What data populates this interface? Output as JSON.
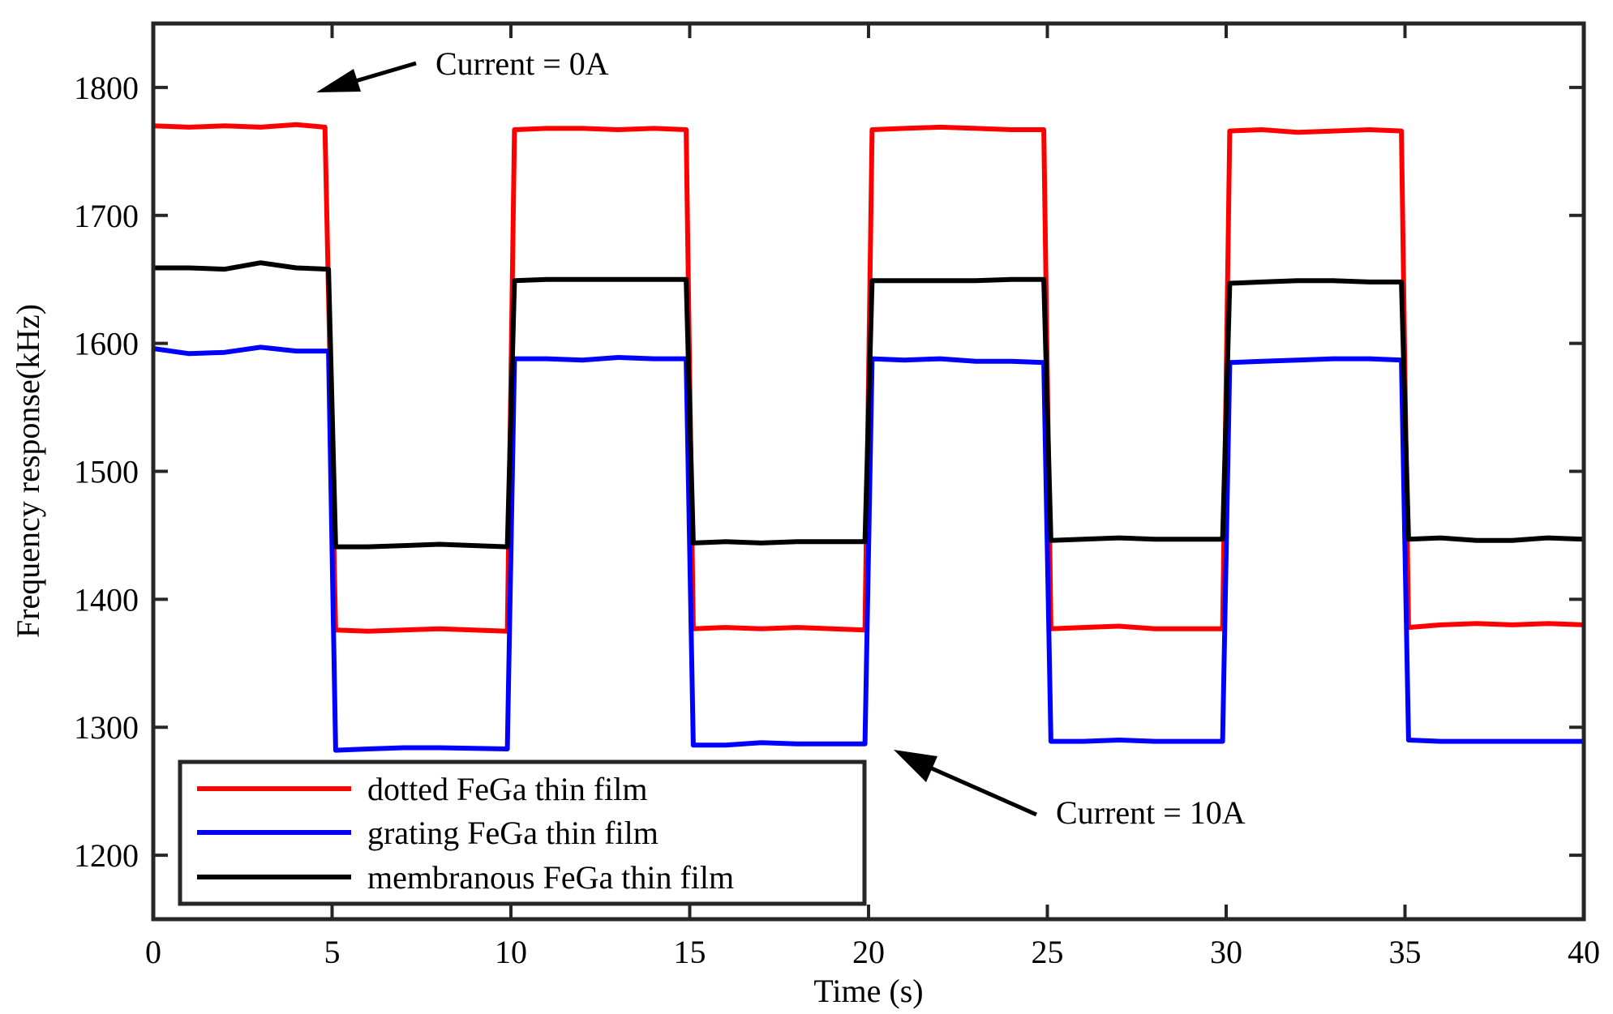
{
  "chart_data": {
    "type": "line",
    "title": "",
    "xlabel": "Time (s)",
    "ylabel": "Frequency response(kHz)",
    "xlim": [
      0,
      40
    ],
    "ylim": [
      1150,
      1850
    ],
    "xticks": [
      0,
      5,
      10,
      15,
      20,
      25,
      30,
      35,
      40
    ],
    "yticks": [
      1200,
      1300,
      1400,
      1500,
      1600,
      1700,
      1800
    ],
    "grid": false,
    "legend_position": "bottom-left",
    "series": [
      {
        "name": "dotted FeGa thin film",
        "color": "#ff0000",
        "x": [
          0,
          1,
          2,
          3,
          4,
          4.8,
          5.1,
          6,
          7,
          8,
          9.9,
          10.1,
          11,
          12,
          13,
          14,
          14.9,
          15.1,
          16,
          17,
          18,
          19.9,
          20.1,
          21,
          22,
          23,
          24,
          24.9,
          25.1,
          26,
          27,
          28,
          29.9,
          30.1,
          31,
          32,
          33,
          34,
          34.9,
          35.1,
          36,
          37,
          38,
          39,
          40
        ],
        "y": [
          1770,
          1769,
          1770,
          1769,
          1771,
          1769,
          1376,
          1375,
          1376,
          1377,
          1375,
          1767,
          1768,
          1768,
          1767,
          1768,
          1767,
          1377,
          1378,
          1377,
          1378,
          1376,
          1767,
          1768,
          1769,
          1768,
          1767,
          1767,
          1377,
          1378,
          1379,
          1377,
          1377,
          1766,
          1767,
          1765,
          1766,
          1767,
          1766,
          1378,
          1380,
          1381,
          1380,
          1381,
          1380
        ]
      },
      {
        "name": "grating FeGa thin film",
        "color": "#0000ff",
        "x": [
          0,
          1,
          2,
          3,
          4,
          4.9,
          5.1,
          6,
          7,
          8,
          9.9,
          10.1,
          11,
          12,
          13,
          14,
          14.9,
          15.1,
          16,
          17,
          18,
          19.9,
          20.1,
          21,
          22,
          23,
          24,
          24.9,
          25.1,
          26,
          27,
          28,
          29.9,
          30.1,
          31,
          32,
          33,
          34,
          34.9,
          35.1,
          36,
          37,
          38,
          39,
          40
        ],
        "y": [
          1596,
          1592,
          1593,
          1597,
          1594,
          1594,
          1282,
          1283,
          1284,
          1284,
          1283,
          1588,
          1588,
          1587,
          1589,
          1588,
          1588,
          1286,
          1286,
          1288,
          1287,
          1287,
          1588,
          1587,
          1588,
          1586,
          1586,
          1585,
          1289,
          1289,
          1290,
          1289,
          1289,
          1585,
          1586,
          1587,
          1588,
          1588,
          1587,
          1290,
          1289,
          1289,
          1289,
          1289,
          1289
        ]
      },
      {
        "name": "membranous FeGa thin film",
        "color": "#000000",
        "x": [
          0,
          1,
          2,
          3,
          4,
          4.9,
          5.1,
          6,
          7,
          8,
          9.9,
          10.1,
          11,
          12,
          13,
          14,
          14.9,
          15.1,
          16,
          17,
          18,
          19.9,
          20.1,
          21,
          22,
          23,
          24,
          24.9,
          25.1,
          26,
          27,
          28,
          29.9,
          30.1,
          31,
          32,
          33,
          34,
          34.9,
          35.1,
          36,
          37,
          38,
          39,
          40
        ],
        "y": [
          1659,
          1659,
          1658,
          1663,
          1659,
          1658,
          1441,
          1441,
          1442,
          1443,
          1441,
          1649,
          1650,
          1650,
          1650,
          1650,
          1650,
          1444,
          1445,
          1444,
          1445,
          1445,
          1649,
          1649,
          1649,
          1649,
          1650,
          1650,
          1446,
          1447,
          1448,
          1447,
          1447,
          1647,
          1648,
          1649,
          1649,
          1648,
          1648,
          1447,
          1448,
          1446,
          1446,
          1448,
          1447
        ]
      }
    ],
    "annotations": [
      {
        "text": "Current = 0A",
        "arrow_to": [
          4.6,
          1795
        ]
      },
      {
        "text": "Current = 10A",
        "arrow_to": [
          20.7,
          1280
        ]
      }
    ]
  }
}
